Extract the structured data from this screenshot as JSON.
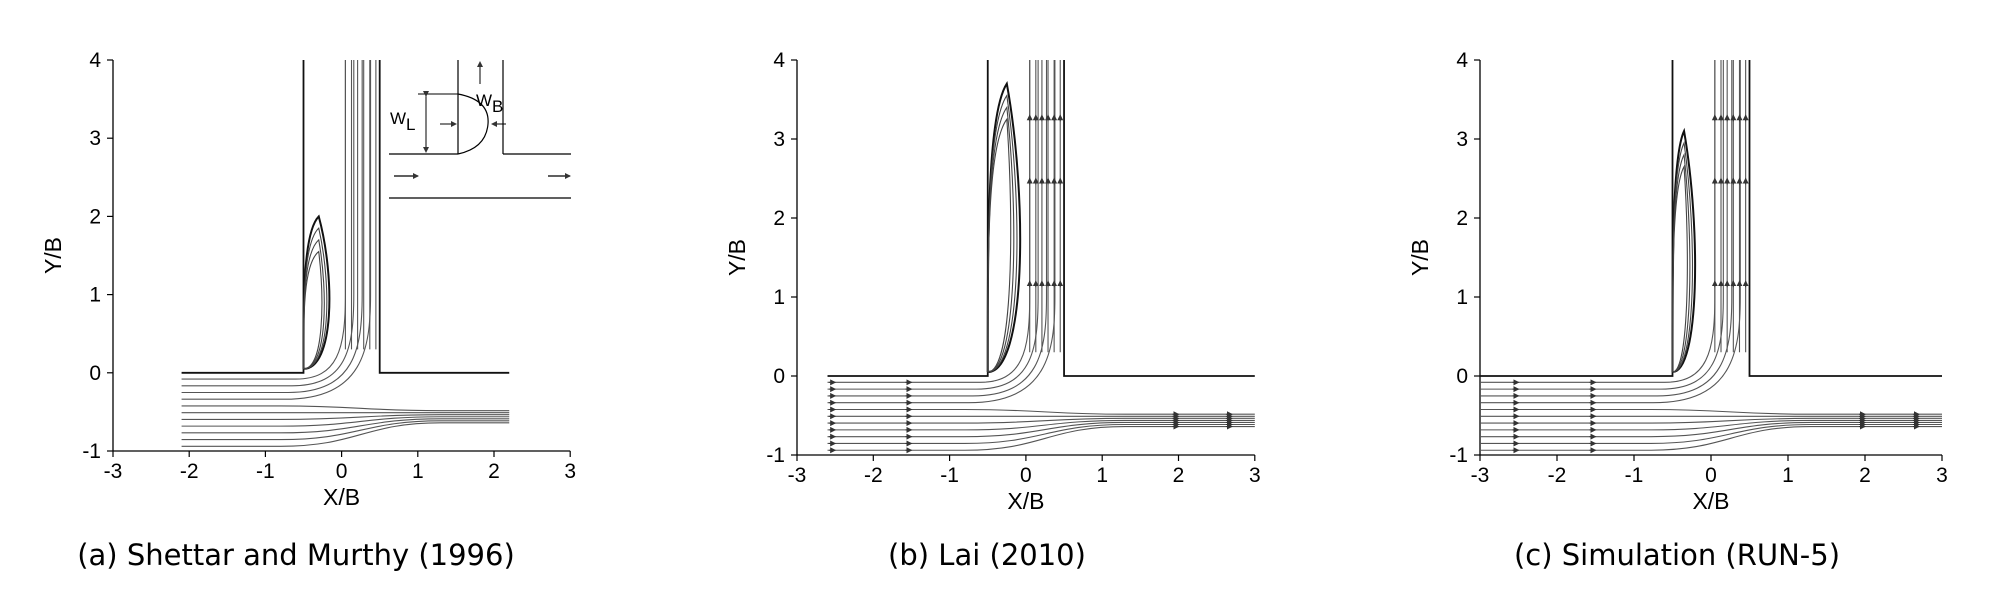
{
  "chart_data": [
    {
      "type": "streamline",
      "caption": "(a) Shettar and Murthy (1996)",
      "xlabel": "X/B",
      "ylabel": "Y/B",
      "xlim": [
        -3,
        3
      ],
      "ylim": [
        -1,
        4
      ],
      "xticks": [
        "-3",
        "-2",
        "-1",
        "0",
        "1",
        "2",
        "3"
      ],
      "yticks": [
        "-1",
        "0",
        "1",
        "2",
        "3",
        "4"
      ],
      "main_channel_x": [
        -2.1,
        2.2
      ],
      "branch_x": [
        -0.5,
        0.5
      ],
      "arrows": false,
      "separation_zone": {
        "x_center": -0.3,
        "y_top": 2.0,
        "half_width": 0.2
      },
      "inset": {
        "labels": [
          "W",
          "L",
          "W",
          "B"
        ]
      }
    },
    {
      "type": "streamline",
      "caption": "(b) Lai (2010)",
      "xlabel": "X/B",
      "ylabel": "Y/B",
      "xlim": [
        -3,
        3
      ],
      "ylim": [
        -1,
        4
      ],
      "xticks": [
        "-3",
        "-2",
        "-1",
        "0",
        "1",
        "2",
        "3"
      ],
      "yticks": [
        "-1",
        "0",
        "1",
        "2",
        "3",
        "4"
      ],
      "main_channel_x": [
        -2.6,
        3.0
      ],
      "branch_x": [
        -0.5,
        0.5
      ],
      "arrows": true,
      "separation_zone": {
        "x_center": -0.25,
        "y_top": 3.7,
        "half_width": 0.25
      }
    },
    {
      "type": "streamline",
      "caption": "(c) Simulation (RUN-5)",
      "xlabel": "X/B",
      "ylabel": "Y/B",
      "xlim": [
        -3,
        3
      ],
      "ylim": [
        -1,
        4
      ],
      "xticks": [
        "-3",
        "-2",
        "-1",
        "0",
        "1",
        "2",
        "3"
      ],
      "yticks": [
        "-1",
        "0",
        "1",
        "2",
        "3",
        "4"
      ],
      "main_channel_x": [
        -3.0,
        3.0
      ],
      "branch_x": [
        -0.5,
        0.5
      ],
      "arrows": true,
      "separation_zone": {
        "x_center": -0.35,
        "y_top": 3.1,
        "half_width": 0.2
      }
    }
  ]
}
